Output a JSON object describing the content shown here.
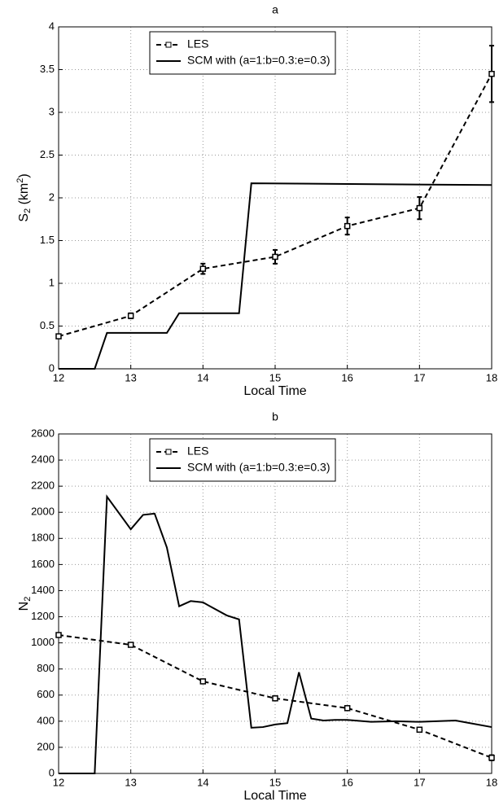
{
  "chart_data": [
    {
      "type": "line",
      "title": "a",
      "xlabel": "Local Time",
      "ylabel_parts": [
        "S",
        "2",
        " (km",
        "2",
        ")"
      ],
      "xlim": [
        12,
        18
      ],
      "ylim": [
        0,
        4
      ],
      "xticks": [
        12,
        13,
        14,
        15,
        16,
        17,
        18
      ],
      "yticks": [
        0,
        0.5,
        1,
        1.5,
        2,
        2.5,
        3,
        3.5,
        4
      ],
      "grid": true,
      "legend": "upper center",
      "series": [
        {
          "name": "LES",
          "color": "#000000",
          "linestyle": "dashed",
          "marker": "square",
          "x": [
            12,
            13,
            14,
            15,
            16,
            17,
            18
          ],
          "values": [
            0.38,
            0.62,
            1.17,
            1.31,
            1.67,
            1.88,
            3.45
          ],
          "errors": [
            0.02,
            0.03,
            0.06,
            0.08,
            0.1,
            0.13,
            0.33
          ]
        },
        {
          "name": "SCM with (a=1:b=0.3:e=0.3)",
          "color": "#000000",
          "linestyle": "solid",
          "x": [
            12,
            12.5,
            12.67,
            13.5,
            13.67,
            14.5,
            14.67,
            18
          ],
          "values": [
            0,
            0,
            0.42,
            0.42,
            0.65,
            0.65,
            2.17,
            2.15
          ]
        }
      ]
    },
    {
      "type": "line",
      "title": "b",
      "xlabel": "Local Time",
      "ylabel_parts": [
        "N",
        "2"
      ],
      "xlim": [
        12,
        18
      ],
      "ylim": [
        0,
        2600
      ],
      "xticks": [
        12,
        13,
        14,
        15,
        16,
        17,
        18
      ],
      "yticks": [
        0,
        200,
        400,
        600,
        800,
        1000,
        1200,
        1400,
        1600,
        1800,
        2000,
        2200,
        2400,
        2600
      ],
      "grid": true,
      "legend": "upper center",
      "series": [
        {
          "name": "LES",
          "color": "#000000",
          "linestyle": "dashed",
          "marker": "square",
          "x": [
            12,
            13,
            14,
            15,
            16,
            17,
            18
          ],
          "values": [
            1060,
            985,
            705,
            575,
            500,
            335,
            120
          ],
          "errors": [
            15,
            15,
            15,
            15,
            15,
            15,
            20
          ]
        },
        {
          "name": "SCM with (a=1:b=0.3:e=0.3)",
          "color": "#000000",
          "linestyle": "solid",
          "x": [
            12,
            12.5,
            12.67,
            13,
            13.17,
            13.33,
            13.5,
            13.67,
            13.83,
            14,
            14.33,
            14.5,
            14.67,
            14.83,
            15,
            15.17,
            15.33,
            15.5,
            15.67,
            15.83,
            16,
            16.33,
            16.67,
            17,
            17.5,
            18
          ],
          "values": [
            0,
            0,
            2120,
            1870,
            1980,
            1990,
            1730,
            1280,
            1320,
            1310,
            1210,
            1180,
            350,
            355,
            375,
            385,
            775,
            420,
            405,
            410,
            410,
            395,
            400,
            395,
            405,
            355
          ]
        }
      ]
    }
  ]
}
